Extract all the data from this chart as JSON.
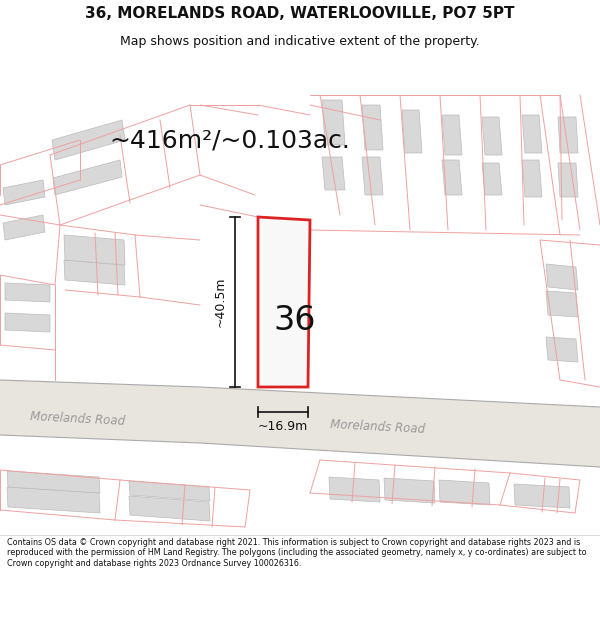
{
  "title_line1": "36, MORELANDS ROAD, WATERLOOVILLE, PO7 5PT",
  "title_line2": "Map shows position and indicative extent of the property.",
  "area_text": "~416m²/~0.103ac.",
  "number_label": "36",
  "dim_width": "~16.9m",
  "dim_height": "~40.5m",
  "road_label_left": "Morelands Road",
  "road_label_right": "Morelands Road",
  "footer_text": "Contains OS data © Crown copyright and database right 2021. This information is subject to Crown copyright and database rights 2023 and is reproduced with the permission of HM Land Registry. The polygons (including the associated geometry, namely x, y co-ordinates) are subject to Crown copyright and database rights 2023 Ordnance Survey 100026316.",
  "bg_color": "#ffffff",
  "map_bg": "#ffffff",
  "plot_outline_color": "#dd2222",
  "plot_fill_color": "#f8f8f8",
  "building_fill_color": "#d8d8d8",
  "building_edge_color": "#bbbbbb",
  "boundary_color": "#f0a0a0",
  "road_color": "#e8e4de",
  "road_edge_color": "#aaaaaa",
  "arrow_color": "#111111",
  "text_color": "#111111",
  "road_text_color": "#999999",
  "footer_fontsize": 5.8,
  "title_fontsize": 11,
  "subtitle_fontsize": 9,
  "area_fontsize": 18,
  "number_fontsize": 24,
  "dim_fontsize": 9
}
